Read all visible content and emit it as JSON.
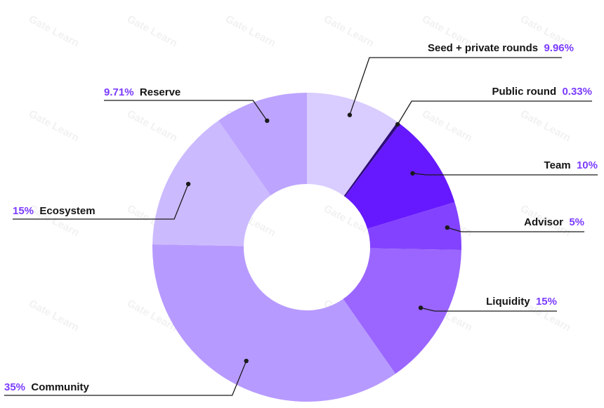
{
  "watermark": {
    "text": "Gate Learn"
  },
  "chart_data": {
    "type": "pie",
    "donut": true,
    "start_angle_deg": 0,
    "direction": "clockwise",
    "slices": [
      {
        "name": "Seed + private rounds",
        "value": 9.96,
        "pct_label": "9.96%",
        "color": "#d9ccff",
        "label_side": "right"
      },
      {
        "name": "Public round",
        "value": 0.33,
        "pct_label": "0.33%",
        "color": "#2e0d7a",
        "label_side": "right"
      },
      {
        "name": "Team",
        "value": 10,
        "pct_label": "10%",
        "color": "#6619ff",
        "label_side": "right"
      },
      {
        "name": "Advisor",
        "value": 5,
        "pct_label": "5%",
        "color": "#8342ff",
        "label_side": "right"
      },
      {
        "name": "Liquidity",
        "value": 15,
        "pct_label": "15%",
        "color": "#9a66ff",
        "label_side": "right"
      },
      {
        "name": "Community",
        "value": 35,
        "pct_label": "35%",
        "color": "#b79aff",
        "label_side": "left"
      },
      {
        "name": "Ecosystem",
        "value": 15,
        "pct_label": "15%",
        "color": "#ccbaff",
        "label_side": "left"
      },
      {
        "name": "Reserve",
        "value": 9.71,
        "pct_label": "9.71%",
        "color": "#bda4ff",
        "label_side": "left"
      }
    ],
    "colors": {
      "pct_text": "#7b3bff",
      "name_text": "#141414",
      "leader_line": "#1a1a1a"
    }
  }
}
